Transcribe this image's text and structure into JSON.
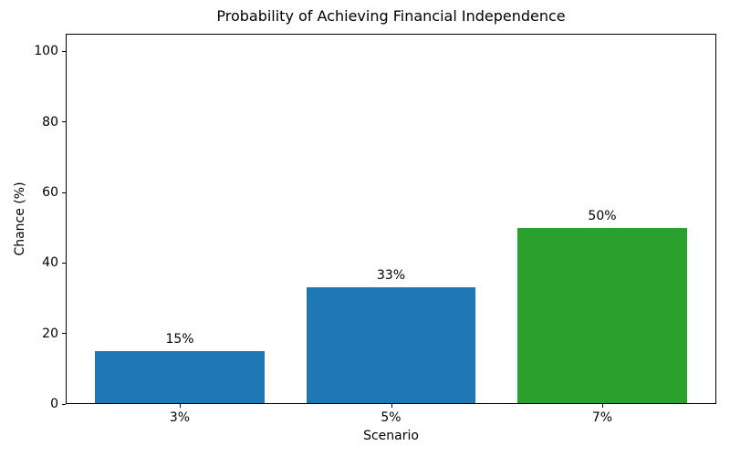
{
  "chart_data": {
    "type": "bar",
    "title": "Probability of Achieving Financial Independence",
    "xlabel": "Scenario",
    "ylabel": "Chance (%)",
    "categories": [
      "3%",
      "5%",
      "7%"
    ],
    "values": [
      15,
      33,
      50
    ],
    "bar_labels": [
      "15%",
      "33%",
      "50%"
    ],
    "bar_colors": [
      "#1f77b4",
      "#1f77b4",
      "#2ca02c"
    ],
    "yticks": [
      0,
      20,
      40,
      60,
      80,
      100
    ],
    "ytick_labels": [
      "0",
      "20",
      "40",
      "60",
      "80",
      "100"
    ],
    "ylim": [
      0,
      105
    ],
    "grid": false,
    "legend_position": "none",
    "spine_color": "#000000",
    "background_color": "#ffffff"
  }
}
